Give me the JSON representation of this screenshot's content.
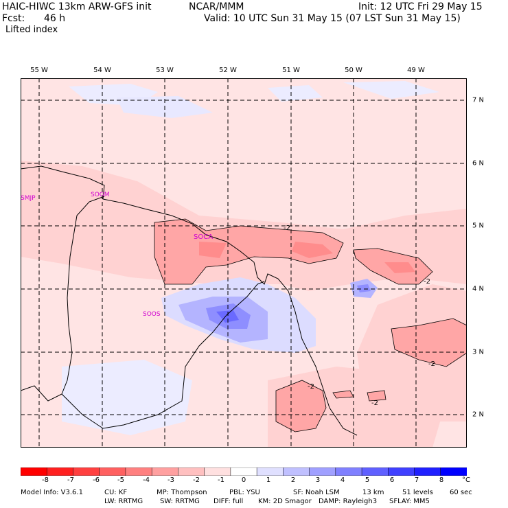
{
  "header": {
    "model": "HAIC-HIWC 13km ARW-GFS init",
    "org": "NCAR/MMM",
    "init": "Init: 12 UTC Fri 29 May 15",
    "fcst_label": "Fcst:",
    "fcst_value": "46 h",
    "valid": "Valid: 10 UTC Sun 31 May 15 (07 LST Sun 31 May 15)",
    "field": "Lifted index"
  },
  "map": {
    "lon_labels": [
      "55 W",
      "54 W",
      "53 W",
      "52 W",
      "51 W",
      "50 W",
      "49 W"
    ],
    "lat_labels": [
      "7 N",
      "6 N",
      "5 N",
      "4 N",
      "3 N",
      "2 N"
    ],
    "stations": [
      "SMJP",
      "SOGM",
      "SOCA",
      "SOOS"
    ],
    "contour_labels": [
      "-2",
      "-2",
      "-2",
      "-2",
      "-2"
    ]
  },
  "colorbar": {
    "ticks": [
      "-8",
      "-7",
      "-6",
      "-5",
      "-4",
      "-3",
      "-2",
      "-1",
      "0",
      "1",
      "2",
      "3",
      "4",
      "5",
      "6",
      "7",
      "8"
    ],
    "unit": "°C",
    "colors": [
      "#ff0000",
      "#ff2020",
      "#ff4040",
      "#ff6060",
      "#ff8080",
      "#ffa0a0",
      "#ffc0c0",
      "#ffe0e0",
      "#ffffff",
      "#e0e0ff",
      "#c0c0ff",
      "#a0a0ff",
      "#8080ff",
      "#6060ff",
      "#4040ff",
      "#2020ff",
      "#0000ff"
    ]
  },
  "footer": {
    "line1": [
      "Model Info: V3.6.1",
      "CU: KF",
      "MP: Thompson",
      "PBL: YSU",
      "SF: Noah LSM",
      "13 km",
      "51 levels",
      "60 sec"
    ],
    "line2": [
      "LW: RRTMG",
      "SW: RRTMG",
      "DIFF: full",
      "KM: 2D Smagor",
      "DAMP: Rayleigh3",
      "SFLAY: MM5"
    ]
  }
}
